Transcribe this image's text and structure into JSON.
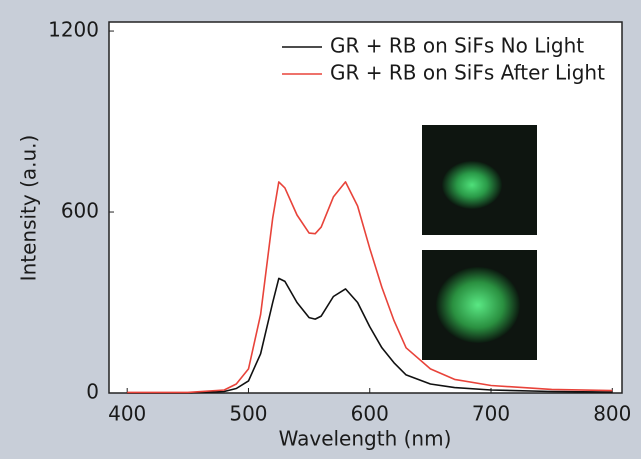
{
  "chart_data": {
    "type": "line",
    "xlabel": "Wavelength (nm)",
    "ylabel": "Intensity (a.u.)",
    "x": [
      400,
      450,
      480,
      490,
      500,
      510,
      520,
      525,
      530,
      540,
      550,
      555,
      560,
      570,
      580,
      590,
      600,
      610,
      620,
      630,
      650,
      670,
      700,
      750,
      800
    ],
    "series": [
      {
        "name": "GR + RB on SiFs No Light",
        "color": "#111111",
        "values": [
          0,
          0,
          5,
          15,
          40,
          130,
          300,
          380,
          370,
          300,
          250,
          245,
          255,
          320,
          345,
          300,
          220,
          150,
          100,
          60,
          30,
          18,
          10,
          5,
          3
        ]
      },
      {
        "name": "GR + RB on SiFs After Light",
        "color": "#e8433a",
        "values": [
          2,
          2,
          10,
          30,
          80,
          260,
          580,
          700,
          680,
          590,
          530,
          528,
          550,
          650,
          700,
          620,
          480,
          350,
          240,
          150,
          80,
          45,
          25,
          12,
          8
        ]
      }
    ],
    "xlim": [
      385,
      808
    ],
    "ylim": [
      0,
      1230
    ],
    "xticks": [
      400,
      500,
      600,
      700,
      800
    ],
    "yticks": [
      0,
      600,
      1200
    ],
    "legend": "upper right"
  }
}
